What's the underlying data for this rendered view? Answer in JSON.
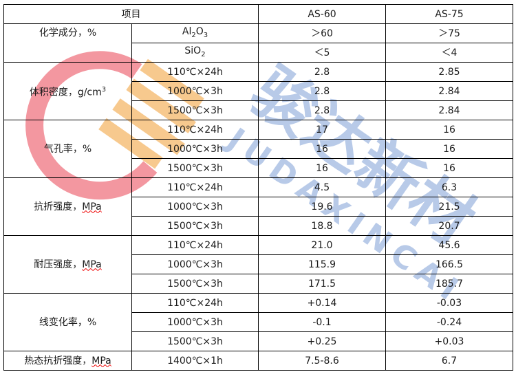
{
  "header": {
    "item": "项目",
    "col1": "AS-60",
    "col2": "AS-75"
  },
  "chem": {
    "label": "化学成分，%",
    "rows": [
      {
        "name_main": "Al",
        "name_sub1": "2",
        "name_mid": "O",
        "name_sub2": "3",
        "v1": "＞60",
        "v2": "＞75"
      },
      {
        "name_main": "SiO",
        "name_sub1": "2",
        "v1": "＜5",
        "v2": "＜4"
      }
    ]
  },
  "groups": [
    {
      "label": "体积密度，g/cm",
      "label_sup": "3",
      "rows": [
        {
          "cond": "110℃×24h",
          "v1": "2.8",
          "v2": "2.85"
        },
        {
          "cond": "1000℃×3h",
          "v1": "2.8",
          "v2": "2.84"
        },
        {
          "cond": "1500℃×3h",
          "v1": "2.8",
          "v2": "2.84"
        }
      ]
    },
    {
      "label": "气孔率，%",
      "rows": [
        {
          "cond": "110℃×24h",
          "v1": "17",
          "v2": "16"
        },
        {
          "cond": "1000℃×3h",
          "v1": "16",
          "v2": "16"
        },
        {
          "cond": "1500℃×3h",
          "v1": "16",
          "v2": "16"
        }
      ]
    },
    {
      "label": "抗折强度，",
      "unit": "MPa",
      "rows": [
        {
          "cond": "110℃×24h",
          "v1": "4.5",
          "v2": "6.3"
        },
        {
          "cond": "1000℃×3h",
          "v1": "19.6",
          "v2": "21.5"
        },
        {
          "cond": "1500℃×3h",
          "v1": "18.8",
          "v2": "20.7"
        }
      ]
    },
    {
      "label": "耐压强度，",
      "unit": "MPa",
      "rows": [
        {
          "cond": "110℃×24h",
          "v1": "21.0",
          "v2": "45.6"
        },
        {
          "cond": "1000℃×3h",
          "v1": "115.9",
          "v2": "166.5"
        },
        {
          "cond": "1500℃×3h",
          "v1": "171.5",
          "v2": "185.7"
        }
      ]
    },
    {
      "label": "线变化率，%",
      "rows": [
        {
          "cond": "110℃×24h",
          "v1": "+0.14",
          "v2": "-0.03"
        },
        {
          "cond": "1000℃×3h",
          "v1": "-0.1",
          "v2": "-0.24"
        },
        {
          "cond": "1500℃×3h",
          "v1": "+0.25",
          "v2": "+0.03"
        }
      ]
    }
  ],
  "hot": {
    "label": "热态抗折强度，",
    "unit": "MPa",
    "cond": "1400℃×1h",
    "v1": "7.5-8.6",
    "v2": "6.7"
  },
  "watermark": {
    "cn": "骏达新材",
    "en": "JUDAXINCAI",
    "colors": {
      "red": "#ee6b78",
      "orange": "#f5b769",
      "blue": "#7f9fd6"
    }
  }
}
